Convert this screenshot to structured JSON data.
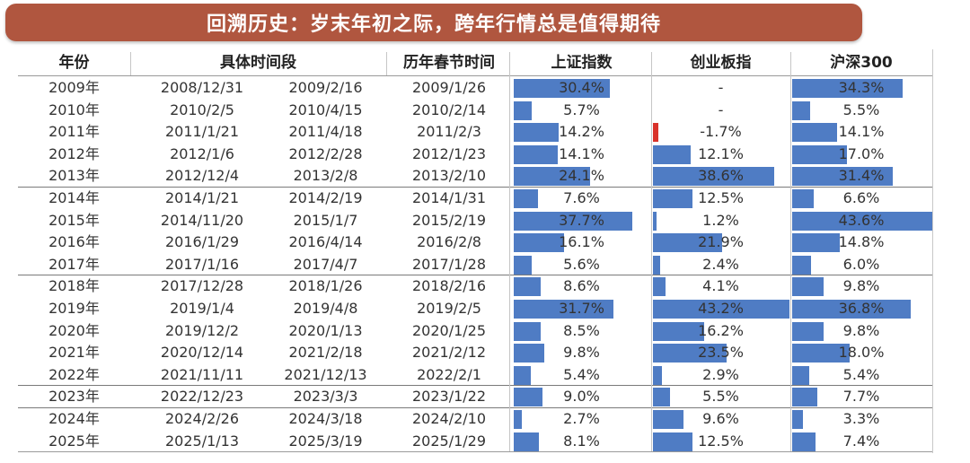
{
  "title": "回溯历史：岁末年初之际，跨年行情总是值得期待",
  "colors": {
    "banner": "#b0563f",
    "bar_positive": "#4f7cc4",
    "bar_negative": "#d9322a"
  },
  "chart_data": {
    "type": "table",
    "title": "回溯历史：岁末年初之际，跨年行情总是值得期待",
    "columns": [
      "年份",
      "具体时间段",
      "历年春节时间",
      "上证指数",
      "创业板指",
      "沪深300"
    ],
    "rows": [
      {
        "year": "2009年",
        "start": "2008/12/31",
        "end": "2009/2/16",
        "spring": "2009/1/26",
        "sh": "30.4%",
        "cy": "-",
        "hs": "34.3%"
      },
      {
        "year": "2010年",
        "start": "2010/2/5",
        "end": "2010/4/15",
        "spring": "2010/2/14",
        "sh": "5.7%",
        "cy": "-",
        "hs": "5.5%"
      },
      {
        "year": "2011年",
        "start": "2011/1/21",
        "end": "2011/4/18",
        "spring": "2011/2/3",
        "sh": "14.2%",
        "cy": "-1.7%",
        "hs": "14.1%"
      },
      {
        "year": "2012年",
        "start": "2012/1/6",
        "end": "2012/2/28",
        "spring": "2012/1/23",
        "sh": "14.1%",
        "cy": "12.1%",
        "hs": "17.0%"
      },
      {
        "year": "2013年",
        "start": "2012/12/4",
        "end": "2013/2/8",
        "spring": "2013/2/10",
        "sh": "24.1%",
        "cy": "38.6%",
        "hs": "31.4%"
      },
      {
        "year": "2014年",
        "start": "2014/1/21",
        "end": "2014/2/19",
        "spring": "2014/1/31",
        "sh": "7.6%",
        "cy": "12.5%",
        "hs": "6.6%"
      },
      {
        "year": "2015年",
        "start": "2014/11/20",
        "end": "2015/1/7",
        "spring": "2015/2/19",
        "sh": "37.7%",
        "cy": "1.2%",
        "hs": "43.6%"
      },
      {
        "year": "2016年",
        "start": "2016/1/29",
        "end": "2016/4/14",
        "spring": "2016/2/8",
        "sh": "16.1%",
        "cy": "21.9%",
        "hs": "14.8%"
      },
      {
        "year": "2017年",
        "start": "2017/1/16",
        "end": "2017/4/7",
        "spring": "2017/1/28",
        "sh": "5.6%",
        "cy": "2.4%",
        "hs": "6.0%"
      },
      {
        "year": "2018年",
        "start": "2017/12/28",
        "end": "2018/1/26",
        "spring": "2018/2/16",
        "sh": "8.6%",
        "cy": "4.1%",
        "hs": "9.8%"
      },
      {
        "year": "2019年",
        "start": "2019/1/4",
        "end": "2019/4/8",
        "spring": "2019/2/5",
        "sh": "31.7%",
        "cy": "43.2%",
        "hs": "36.8%"
      },
      {
        "year": "2020年",
        "start": "2019/12/2",
        "end": "2020/1/13",
        "spring": "2020/1/25",
        "sh": "8.5%",
        "cy": "16.2%",
        "hs": "9.8%"
      },
      {
        "year": "2021年",
        "start": "2020/12/14",
        "end": "2021/2/18",
        "spring": "2021/2/12",
        "sh": "9.8%",
        "cy": "23.5%",
        "hs": "18.0%"
      },
      {
        "year": "2022年",
        "start": "2021/11/11",
        "end": "2021/12/13",
        "spring": "2022/2/1",
        "sh": "5.4%",
        "cy": "2.9%",
        "hs": "5.4%"
      },
      {
        "year": "2023年",
        "start": "2022/12/23",
        "end": "2023/3/3",
        "spring": "2023/1/22",
        "sh": "9.0%",
        "cy": "5.5%",
        "hs": "7.7%"
      },
      {
        "year": "2024年",
        "start": "2024/2/26",
        "end": "2024/3/18",
        "spring": "2024/2/10",
        "sh": "2.7%",
        "cy": "9.6%",
        "hs": "3.3%"
      },
      {
        "year": "2025年",
        "start": "2025/1/13",
        "end": "2025/3/19",
        "spring": "2025/1/29",
        "sh": "8.1%",
        "cy": "12.5%",
        "hs": "7.4%"
      }
    ],
    "series": [
      {
        "name": "上证指数",
        "values": [
          30.4,
          5.7,
          14.2,
          14.1,
          24.1,
          7.6,
          37.7,
          16.1,
          5.6,
          8.6,
          31.7,
          8.5,
          9.8,
          5.4,
          9.0,
          2.7,
          8.1
        ]
      },
      {
        "name": "创业板指",
        "values": [
          null,
          null,
          -1.7,
          12.1,
          38.6,
          12.5,
          1.2,
          21.9,
          2.4,
          4.1,
          43.2,
          16.2,
          23.5,
          2.9,
          5.5,
          9.6,
          12.5
        ]
      },
      {
        "name": "沪深300",
        "values": [
          34.3,
          5.5,
          14.1,
          17.0,
          31.4,
          6.6,
          43.6,
          14.8,
          6.0,
          9.8,
          36.8,
          9.8,
          18.0,
          5.4,
          7.7,
          3.3,
          7.4
        ]
      }
    ],
    "bar_scale_max": 43.6,
    "separators_after_rows": [
      4,
      8,
      13,
      14
    ]
  }
}
